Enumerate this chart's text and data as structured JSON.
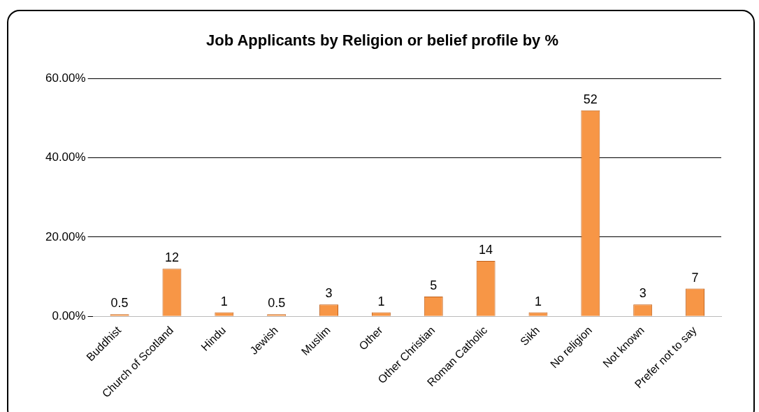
{
  "chart_data": {
    "type": "bar",
    "title": "Job Applicants by Religion or belief profile by %",
    "categories": [
      "Buddhist",
      "Church of Scotland",
      "Hindu",
      "Jewish",
      "Muslim",
      "Other",
      "Other Christian",
      "Roman Catholic",
      "Sikh",
      "No religion",
      "Not known",
      "Prefer not to say"
    ],
    "values": [
      0.5,
      12,
      1,
      0.5,
      3,
      1,
      5,
      14,
      1,
      52,
      3,
      7
    ],
    "color": "#f79646",
    "ylim": [
      0,
      60
    ],
    "yticks": [
      {
        "value": 0,
        "label": "0.00%"
      },
      {
        "value": 20,
        "label": "20.00%"
      },
      {
        "value": 40,
        "label": "40.00%"
      },
      {
        "value": 60,
        "label": "60.00%"
      }
    ],
    "grid": "y",
    "data_labels": true
  }
}
